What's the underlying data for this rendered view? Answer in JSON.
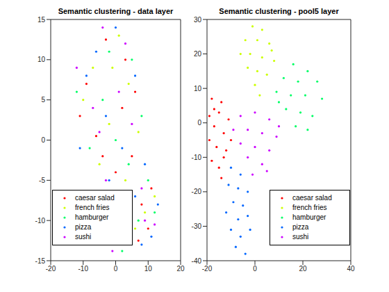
{
  "chart_data": [
    {
      "type": "scatter",
      "title": "Semantic clustering - data layer",
      "xlim": [
        -20,
        20
      ],
      "xticks": [
        -20,
        -10,
        0,
        10,
        20
      ],
      "ylim": [
        -15,
        15
      ],
      "yticks": [
        -15,
        -10,
        -5,
        0,
        5,
        10,
        15
      ],
      "legend": "lower left",
      "marker": ".",
      "series": [
        {
          "name": "caesar salad",
          "color": "#ff0000",
          "x": [
            -3,
            -9,
            2,
            -6,
            5,
            8,
            10,
            -11,
            0,
            6,
            3,
            -4,
            11,
            7
          ],
          "y": [
            12.5,
            7,
            4,
            0.5,
            -2,
            -8,
            -11,
            3,
            -4,
            6,
            10,
            -2,
            -6,
            -12.5
          ]
        },
        {
          "name": "french fries",
          "color": "#ccff00",
          "x": [
            1,
            -7,
            4,
            -10,
            -2,
            7,
            -5,
            3,
            9,
            6,
            -1,
            12
          ],
          "y": [
            13,
            9,
            7,
            5,
            2,
            1,
            -3,
            -5,
            -9,
            -11,
            9,
            -7
          ]
        },
        {
          "name": "hamburger",
          "color": "#00ff66",
          "x": [
            -2,
            5,
            -12,
            -4,
            8,
            0,
            -8,
            4,
            10,
            7,
            12,
            2
          ],
          "y": [
            11,
            10,
            6,
            5,
            3,
            0,
            -1,
            -3,
            -5,
            -10,
            -9,
            -13.8
          ]
        },
        {
          "name": "pizza",
          "color": "#0066ff",
          "x": [
            0,
            -6,
            -9,
            6,
            -3,
            -11,
            2,
            9,
            -2,
            6,
            11,
            8,
            13
          ],
          "y": [
            14,
            11,
            8,
            8,
            3,
            -1,
            -1,
            -3,
            -5,
            -7,
            -12,
            -13,
            -8
          ]
        },
        {
          "name": "sushi",
          "color": "#cc00ff",
          "x": [
            -4,
            3,
            -12,
            -7,
            1,
            -5,
            5,
            -3,
            8,
            9,
            -1,
            12
          ],
          "y": [
            14,
            12,
            9,
            4,
            6,
            1,
            2,
            -5,
            -6,
            -10,
            -13.8,
            -10.5
          ]
        }
      ]
    },
    {
      "type": "scatter",
      "title": "Semantic clustering - pool5 layer",
      "xlim": [
        -20,
        40
      ],
      "xticks": [
        -20,
        0,
        20,
        40
      ],
      "ylim": [
        -40,
        30
      ],
      "yticks": [
        -40,
        -30,
        -20,
        -10,
        0,
        10,
        20,
        30
      ],
      "legend": "lower right",
      "marker": ".",
      "series": [
        {
          "name": "caesar salad",
          "color": "#ff0000",
          "x": [
            -18,
            -14,
            -19,
            -15,
            -11,
            -17,
            -13,
            -19,
            -16,
            -12,
            -18,
            -15,
            -10,
            -14,
            -17,
            -13
          ],
          "y": [
            7,
            6,
            2,
            3,
            1,
            -1,
            -3,
            -5,
            -7,
            -8,
            -11,
            -13,
            -5,
            -16,
            4,
            -10
          ]
        },
        {
          "name": "french fries",
          "color": "#ccff00",
          "x": [
            -1,
            3,
            -4,
            1,
            6,
            -6,
            -2,
            3,
            8,
            -3,
            1,
            5,
            0,
            2,
            7
          ],
          "y": [
            28,
            27,
            24,
            24,
            23,
            20,
            20,
            19,
            18,
            16,
            15,
            14,
            11,
            8,
            21
          ]
        },
        {
          "name": "hamburger",
          "color": "#00ff66",
          "x": [
            16,
            22,
            12,
            18,
            26,
            9,
            15,
            21,
            28,
            13,
            19,
            24,
            17,
            22,
            10
          ],
          "y": [
            17,
            15,
            13,
            12,
            12,
            9,
            8,
            8,
            7,
            4,
            3,
            2,
            -1,
            -2,
            6
          ]
        },
        {
          "name": "pizza",
          "color": "#0066ff",
          "x": [
            -10,
            -6,
            -11,
            -7,
            -3,
            -9,
            -5,
            -12,
            -7,
            -3,
            -10,
            -6,
            -8,
            -4,
            -2
          ],
          "y": [
            -13,
            -15,
            -18,
            -19,
            -20,
            -23,
            -24,
            -26,
            -28,
            -27,
            -31,
            -33,
            -36,
            -38,
            -31
          ]
        },
        {
          "name": "sushi",
          "color": "#cc00ff",
          "x": [
            -6,
            0,
            6,
            -9,
            -3,
            3,
            9,
            -6,
            0,
            6,
            -3,
            3,
            -1,
            10,
            5
          ],
          "y": [
            2,
            3,
            1,
            -2,
            -2,
            -3,
            -4,
            -6,
            -7,
            -8,
            -10,
            -12,
            -15,
            -1,
            -14
          ]
        }
      ]
    }
  ]
}
